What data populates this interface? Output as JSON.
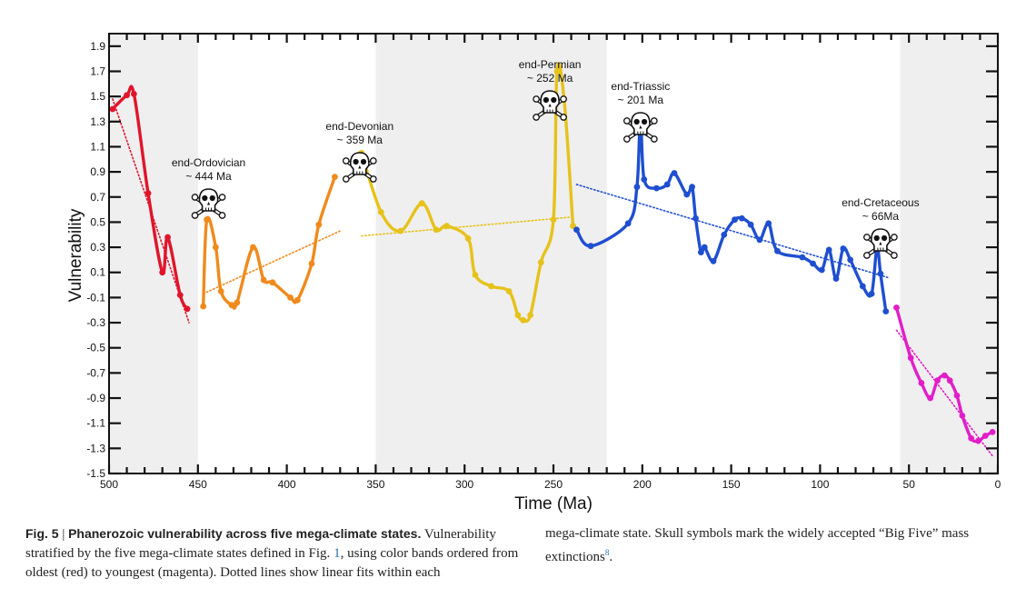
{
  "chart_data": {
    "type": "line",
    "xlabel": "Time (Ma)",
    "ylabel": "Vulnerability",
    "xlim": [
      500,
      0
    ],
    "ylim": [
      -1.5,
      2.0
    ],
    "x_ticks": [
      500,
      450,
      400,
      350,
      300,
      250,
      200,
      150,
      100,
      50,
      0
    ],
    "y_ticks": [
      -1.5,
      -1.3,
      -1.1,
      -0.9,
      -0.7,
      -0.5,
      -0.3,
      -0.1,
      0.1,
      0.3,
      0.5,
      0.7,
      0.9,
      1.1,
      1.3,
      1.5,
      1.7,
      1.9
    ],
    "shaded_bands": [
      [
        500,
        450
      ],
      [
        350,
        220
      ],
      [
        55,
        0
      ]
    ],
    "band_color": "#efefef",
    "series": [
      {
        "color": "#e0152b",
        "x": [
          498,
          490,
          486,
          478,
          470,
          467,
          460,
          456
        ],
        "y": [
          1.4,
          1.51,
          1.52,
          0.73,
          0.1,
          0.38,
          -0.08,
          -0.19
        ],
        "fit": [
          [
            498,
            1.48
          ],
          [
            455,
            -0.3
          ]
        ]
      },
      {
        "color": "#f08a1c",
        "x": [
          447,
          445,
          440,
          437,
          431,
          428,
          419,
          413,
          408,
          398,
          394,
          386,
          382,
          373
        ],
        "y": [
          -0.17,
          0.52,
          0.3,
          -0.05,
          -0.16,
          -0.14,
          0.3,
          0.04,
          0.02,
          -0.1,
          -0.12,
          0.17,
          0.48,
          0.86
        ],
        "fit": [
          [
            447,
            -0.07
          ],
          [
            370,
            0.43
          ]
        ]
      },
      {
        "color": "#e6c21a",
        "x": [
          358,
          347,
          336,
          324,
          316,
          310,
          298,
          294,
          285,
          275,
          270,
          267,
          263,
          257,
          250,
          248,
          244,
          239
        ],
        "y": [
          1.05,
          0.58,
          0.43,
          0.65,
          0.44,
          0.47,
          0.37,
          0.08,
          -0.01,
          -0.05,
          -0.24,
          -0.28,
          -0.24,
          0.18,
          0.52,
          1.7,
          1.48,
          0.47
        ],
        "fit": [
          [
            358,
            0.39
          ],
          [
            240,
            0.54
          ]
        ]
      },
      {
        "color": "#1f4fd0",
        "x": [
          237,
          229,
          208,
          203,
          201,
          199,
          192,
          186,
          182,
          175,
          172,
          170,
          167,
          165,
          160,
          154,
          148,
          144,
          139,
          134,
          129,
          124,
          110,
          104,
          99,
          95,
          91,
          87,
          83,
          76,
          71,
          68,
          66,
          63
        ],
        "y": [
          0.44,
          0.31,
          0.49,
          0.78,
          1.33,
          0.84,
          0.77,
          0.8,
          0.89,
          0.72,
          0.78,
          0.53,
          0.26,
          0.3,
          0.19,
          0.4,
          0.52,
          0.53,
          0.48,
          0.36,
          0.49,
          0.27,
          0.22,
          0.17,
          0.12,
          0.28,
          0.05,
          0.29,
          0.2,
          -0.01,
          -0.07,
          0.3,
          0.09,
          -0.21
        ],
        "fit": [
          [
            237,
            0.8
          ],
          [
            62,
            0.06
          ]
        ]
      },
      {
        "color": "#e21ec9",
        "x": [
          57,
          49,
          43,
          38,
          34,
          30,
          27,
          23,
          20,
          15,
          11,
          7,
          3
        ],
        "y": [
          -0.18,
          -0.58,
          -0.78,
          -0.9,
          -0.76,
          -0.72,
          -0.76,
          -0.88,
          -1.04,
          -1.22,
          -1.24,
          -1.2,
          -1.17
        ],
        "fit": [
          [
            57,
            -0.36
          ],
          [
            3,
            -1.36
          ]
        ]
      }
    ],
    "extinctions": [
      {
        "name": "end-Ordovician",
        "age_label": "~ 444 Ma",
        "x": 444
      },
      {
        "name": "end-Devonian",
        "age_label": "~ 359 Ma",
        "x": 359
      },
      {
        "name": "end-Permian",
        "age_label": "~ 252 Ma",
        "x": 252
      },
      {
        "name": "end-Triassic",
        "age_label": "~ 201 Ma",
        "x": 201
      },
      {
        "name": "end-Cretaceous",
        "age_label": "~ 66Ma",
        "x": 66
      }
    ]
  },
  "caption": {
    "fig_label": "Fig. 5",
    "separator": " | ",
    "title": "Phanerozoic vulnerability across five mega-climate states.",
    "body_pre": " Vulnerability stratified by the five mega-climate states defined in Fig. ",
    "fig_ref": "1",
    "body_mid": ", using color bands ordered from oldest (red) to youngest (magenta). Dotted lines show linear fits within each",
    "body_right": "mega-climate state. Skull symbols mark the widely accepted “Big Five” mass extinctions",
    "ref_num": "8",
    "end_punct": "."
  }
}
